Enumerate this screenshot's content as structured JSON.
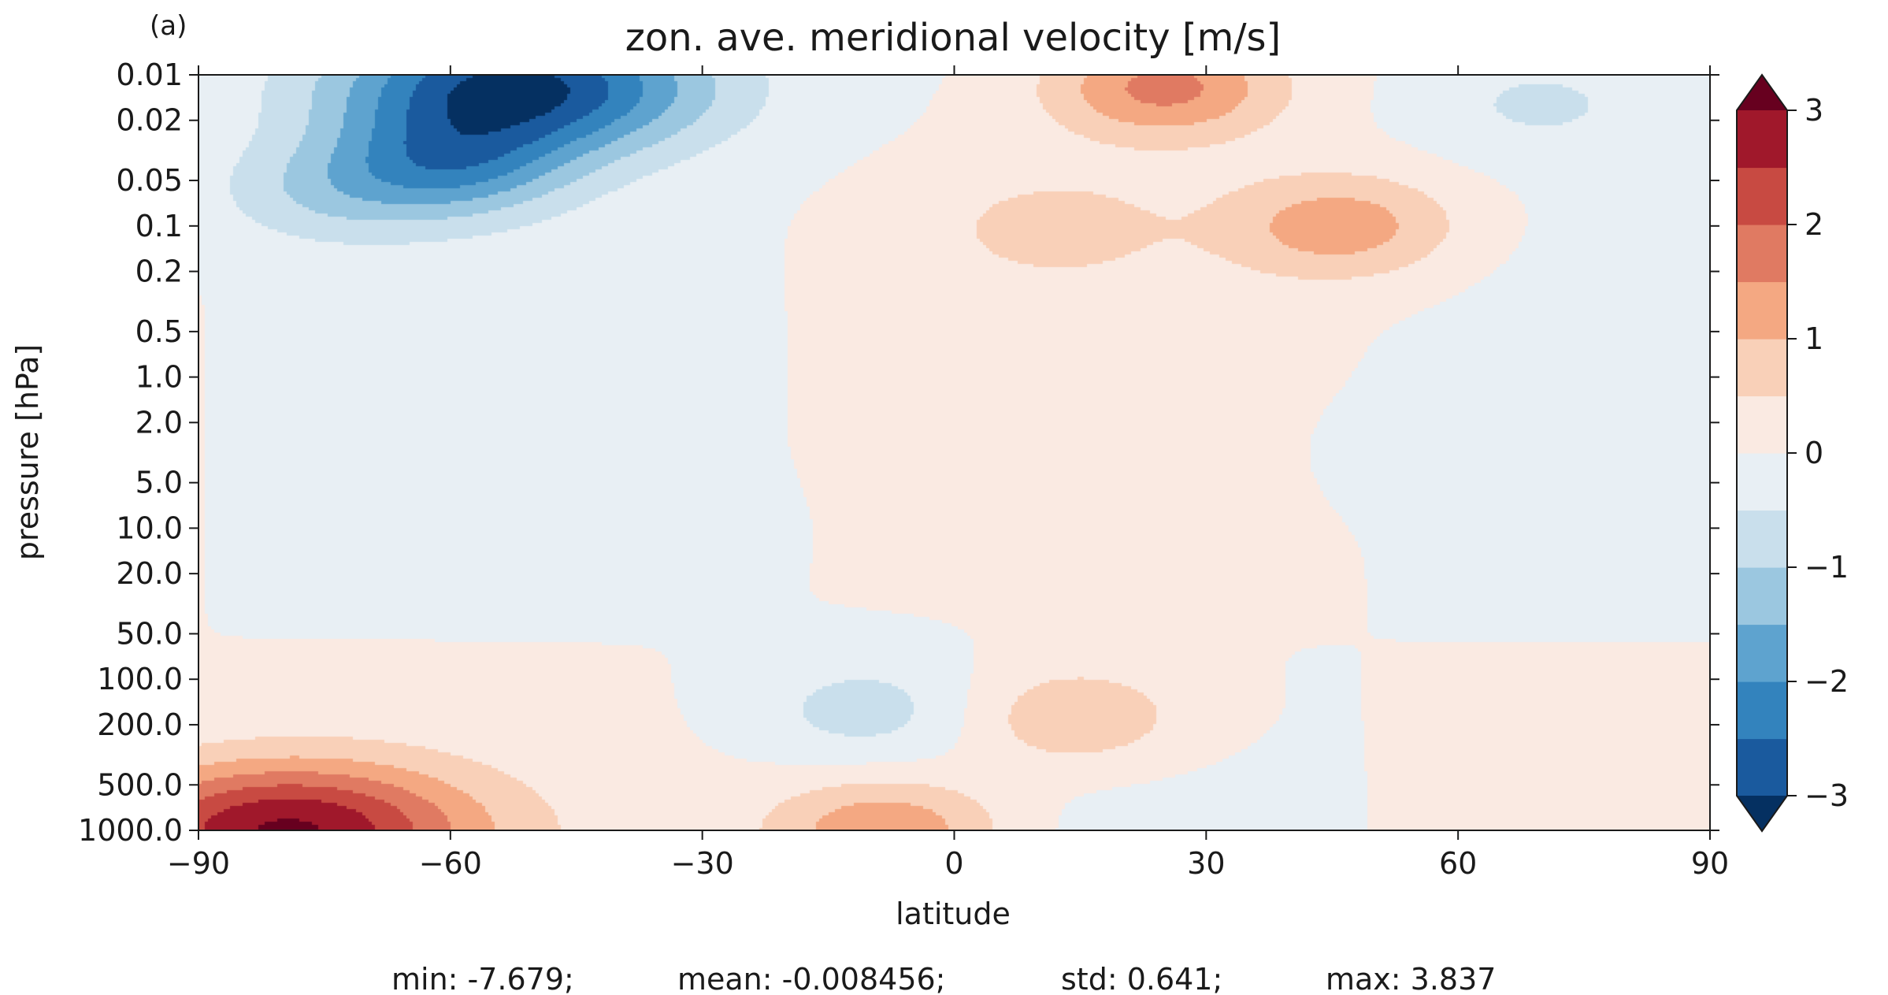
{
  "chart_data": {
    "type": "heatmap",
    "panel_label": "(a)",
    "title": "zon. ave. meridional velocity [m/s]",
    "xlabel": "latitude",
    "ylabel": "pressure [hPa]",
    "xlim": [
      -90,
      90
    ],
    "ylim": [
      1000.0,
      0.01
    ],
    "y_scale": "log",
    "x_ticks": [
      -90,
      -60,
      -30,
      0,
      30,
      60,
      90
    ],
    "x_tick_labels": [
      "−90",
      "−60",
      "−30",
      "0",
      "30",
      "60",
      "90"
    ],
    "y_ticks": [
      0.01,
      0.02,
      0.05,
      0.1,
      0.2,
      0.5,
      1.0,
      2.0,
      5.0,
      10.0,
      20.0,
      50.0,
      100.0,
      200.0,
      500.0,
      1000.0
    ],
    "y_tick_labels": [
      "0.01",
      "0.02",
      "0.05",
      "0.1",
      "0.2",
      "0.5",
      "1.0",
      "2.0",
      "5.0",
      "10.0",
      "20.0",
      "50.0",
      "100.0",
      "200.0",
      "500.0",
      "1000.0"
    ],
    "colormap": "RdBu_r",
    "colorbar": {
      "levels": [
        -3.0,
        -2.5,
        -2.0,
        -1.5,
        -1.0,
        -0.5,
        0.0,
        0.5,
        1.0,
        1.5,
        2.0,
        2.5,
        3.0
      ],
      "colors": [
        "#053061",
        "#1a5a9e",
        "#3383bd",
        "#5ea3cf",
        "#9bc7e0",
        "#c9dfec",
        "#e8eff4",
        "#faeae2",
        "#f9d0b8",
        "#f4a882",
        "#e07a62",
        "#c84a42",
        "#a0182b",
        "#67001f"
      ],
      "ticks": [
        -3,
        -2,
        -1,
        0,
        1,
        2,
        3
      ],
      "tick_labels": [
        "−3",
        "−2",
        "−1",
        "0",
        "1",
        "2",
        "3"
      ],
      "extend": "both"
    },
    "approx_features": [
      {
        "lat": -52,
        "p": 0.012,
        "v": -3.2
      },
      {
        "lat": -60,
        "p": 0.04,
        "v": -1.6
      },
      {
        "lat": -75,
        "p": 0.06,
        "v": -0.8
      },
      {
        "lat": 25,
        "p": 0.012,
        "v": 1.7
      },
      {
        "lat": 46,
        "p": 0.1,
        "v": 1.3
      },
      {
        "lat": 12,
        "p": 0.1,
        "v": 0.6
      },
      {
        "lat": 70,
        "p": 0.015,
        "v": -0.6
      },
      {
        "lat": 14,
        "p": 180,
        "v": 1.0
      },
      {
        "lat": -10,
        "p": 160,
        "v": -0.7
      },
      {
        "lat": -8,
        "p": 1000,
        "v": 1.5
      },
      {
        "lat": -80,
        "p": 1000,
        "v": 3.0
      },
      {
        "lat": -40,
        "p": 10,
        "v": -0.3
      },
      {
        "lat": 60,
        "p": 3,
        "v": -0.3
      }
    ]
  },
  "stats": {
    "min": "min: -7.679;",
    "mean": "mean: -0.008456;",
    "std": "std: 0.641;",
    "max": "max: 3.837"
  }
}
